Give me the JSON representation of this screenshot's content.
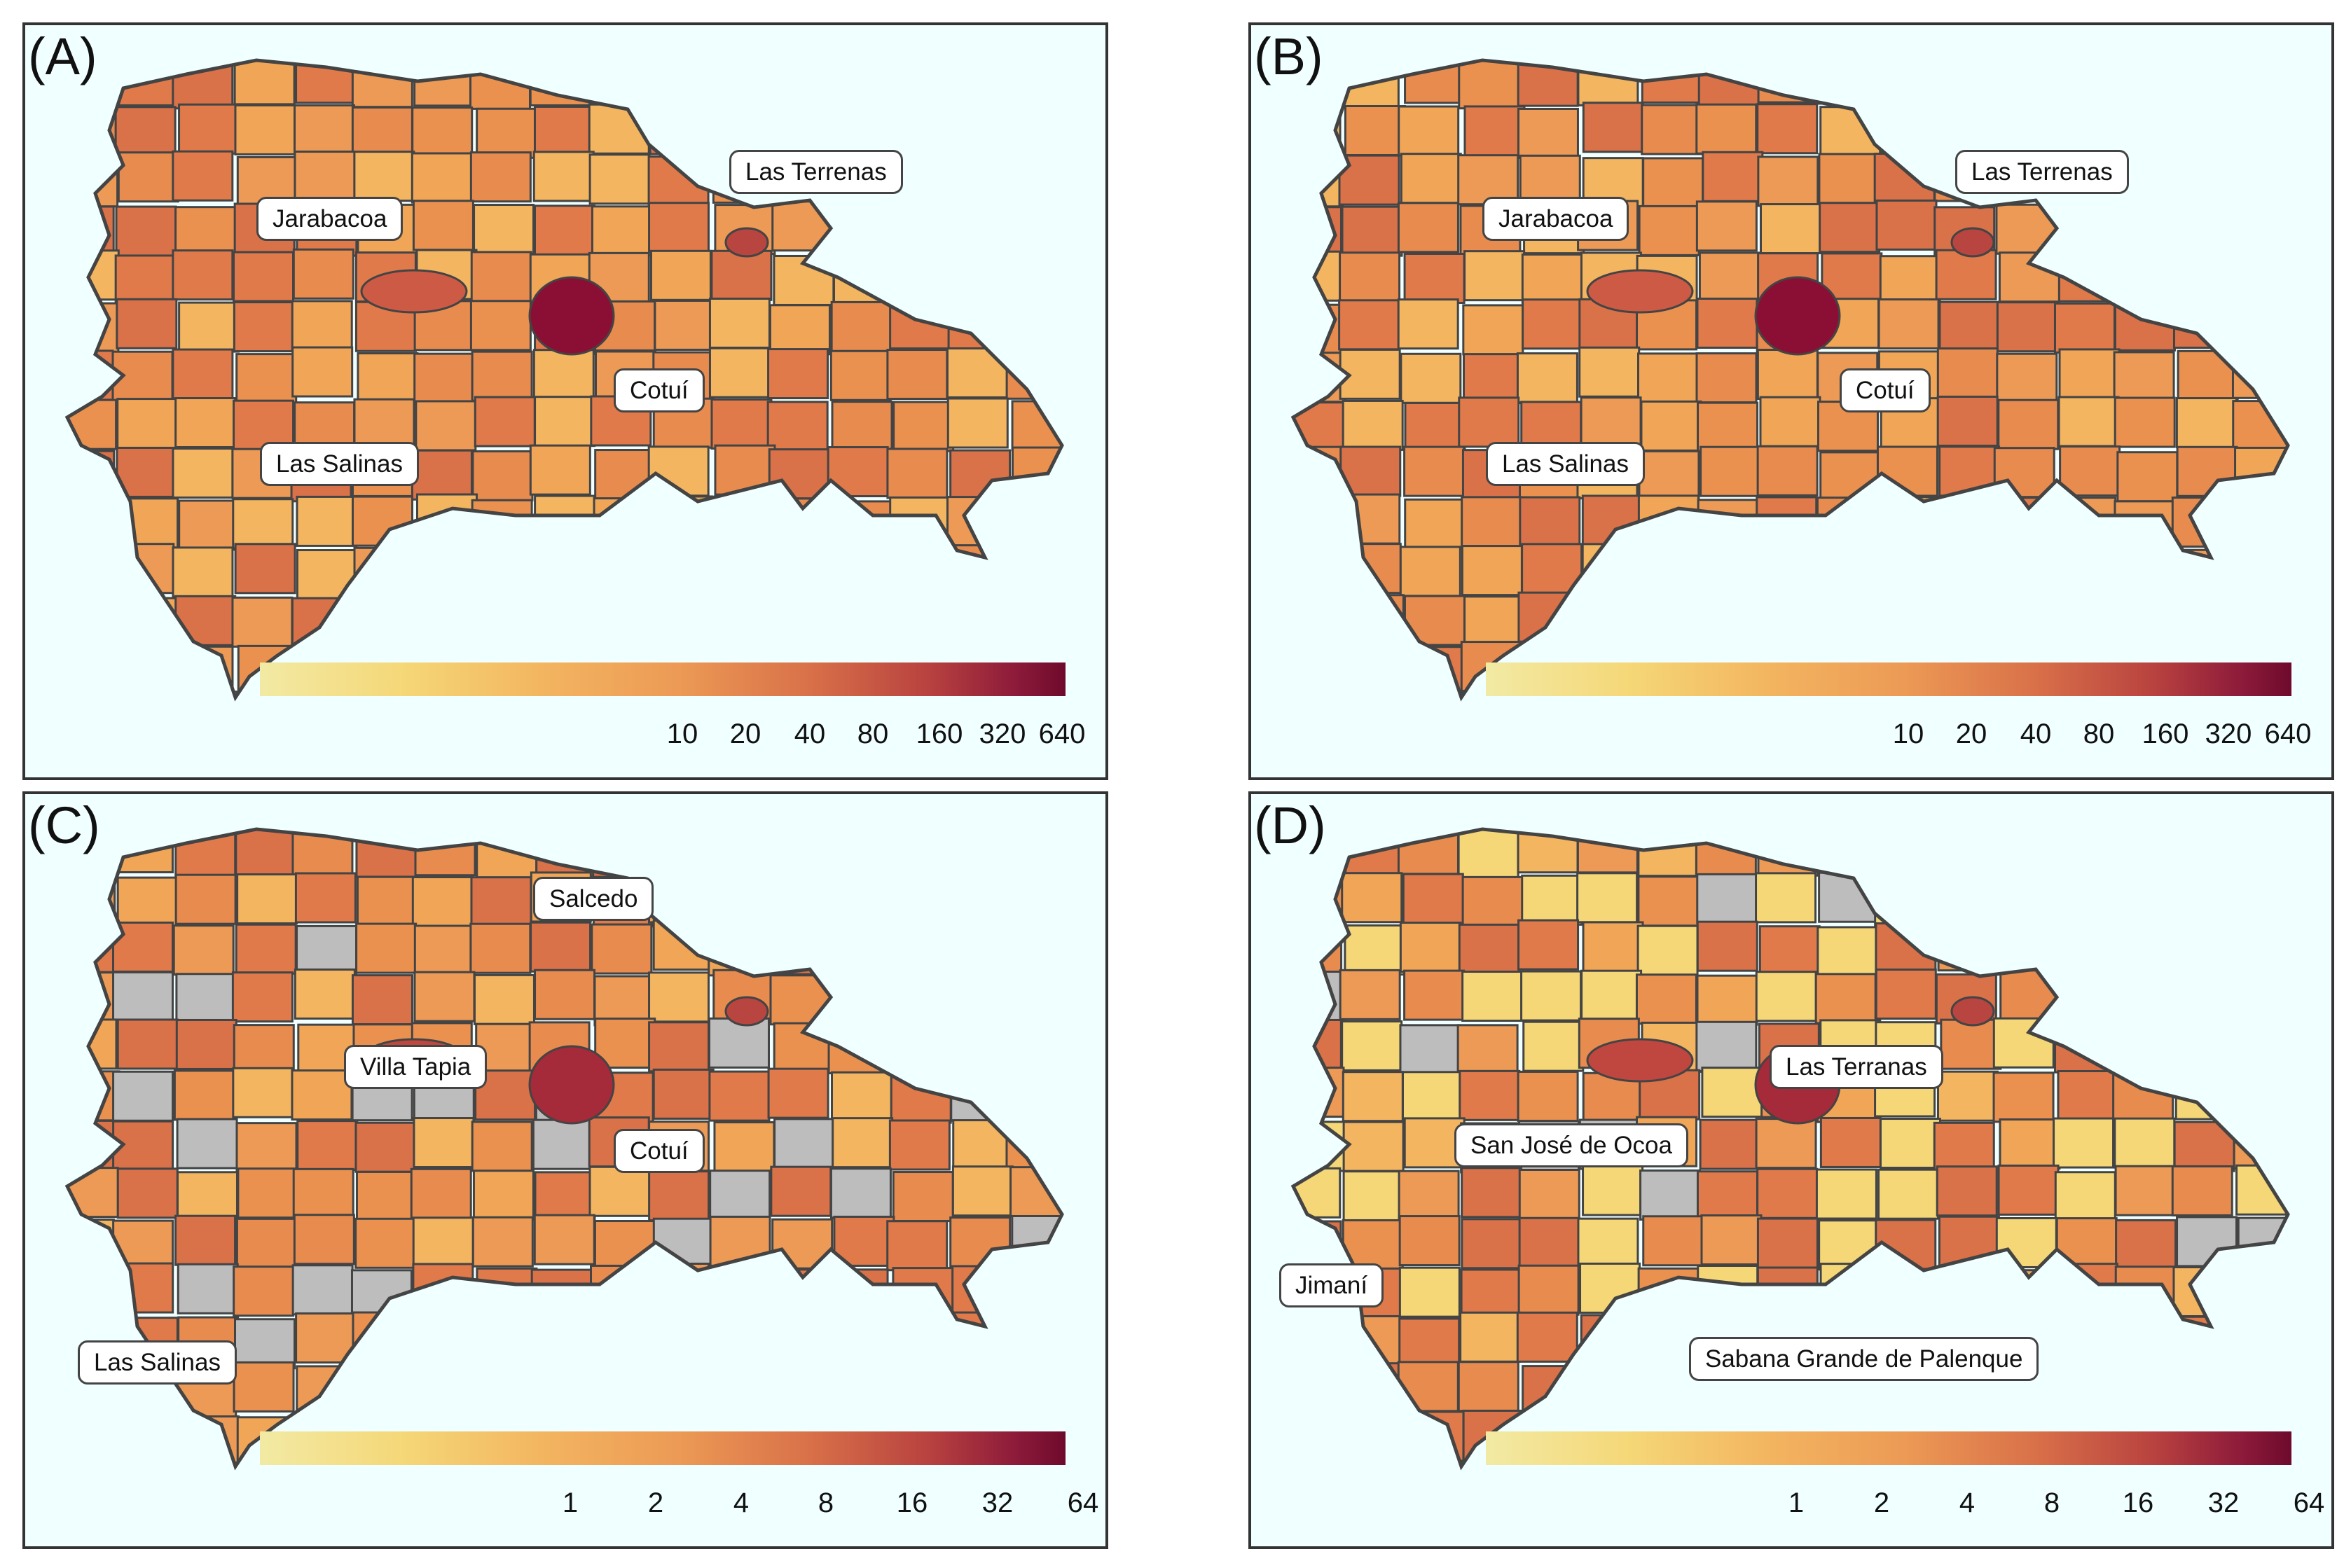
{
  "panels": [
    {
      "id": "A",
      "label": "(A)",
      "legend": {
        "ticks": [
          "10",
          "20",
          "40",
          "80",
          "160",
          "320",
          "640"
        ]
      },
      "callouts": {
        "c1": "Las Terrenas",
        "c2": "Jarabacoa",
        "c3": "Cotuí",
        "c4": "Las Salinas"
      },
      "highlight_colors": [
        "#8b0f35",
        "#cc5a45",
        "#b84540"
      ]
    },
    {
      "id": "B",
      "label": "(B)",
      "legend": {
        "ticks": [
          "10",
          "20",
          "40",
          "80",
          "160",
          "320",
          "640"
        ]
      },
      "callouts": {
        "c1": "Las Terrenas",
        "c2": "Jarabacoa",
        "c3": "Cotuí",
        "c4": "Las Salinas"
      },
      "highlight_colors": [
        "#8b0f35",
        "#cc5a45",
        "#b84540"
      ]
    },
    {
      "id": "C",
      "label": "(C)",
      "legend": {
        "ticks": [
          "1",
          "2",
          "4",
          "8",
          "16",
          "32",
          "64"
        ]
      },
      "callouts": {
        "c1": "Salcedo",
        "c2": "Villa Tapia",
        "c3": "Cotuí",
        "c4": "Las Salinas"
      },
      "highlight_colors": [
        "#a52a3a",
        "#c0473f",
        "#b84540"
      ]
    },
    {
      "id": "D",
      "label": "(D)",
      "legend": {
        "ticks": [
          "1",
          "2",
          "4",
          "8",
          "16",
          "32",
          "64"
        ]
      },
      "callouts": {
        "c1": "Las Terranas",
        "c2": "San José de Ocoa",
        "c3": "Jimaní",
        "c4": "Sabana Grande de Palenque"
      },
      "highlight_colors": [
        "#a52a3a",
        "#c0473f",
        "#b84540"
      ]
    }
  ],
  "colors": {
    "ocean": "#f0ffff",
    "border": "#444444",
    "missing": "#bdbdbd",
    "scale_low": "#f2eaa4",
    "scale_mid": "#ec9a55",
    "scale_high": "#6e0a2c"
  }
}
